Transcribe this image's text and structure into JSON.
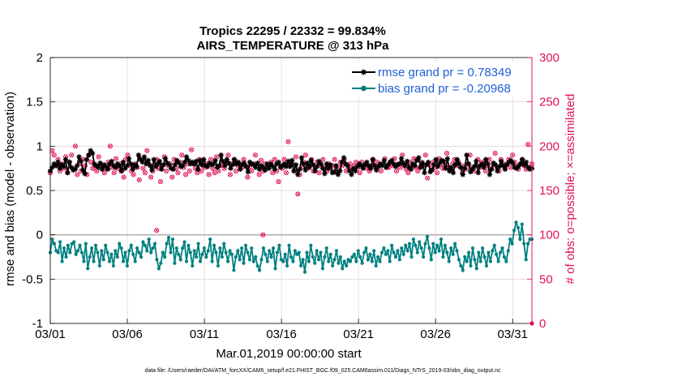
{
  "chart_data": {
    "type": "line",
    "title": "Tropics 22295 / 22332 = 99.834%",
    "subtitle": "AIRS_TEMPERATURE @ 313 hPa",
    "xlabel": "Mar.01,2019 00:00:00 start",
    "ylabel_left": "rmse and bias (model - observation)",
    "ylabel_right": "# of obs: o=possible; ×=assimilated",
    "footnote": "data file: /Users/raeder/DAI/ATM_forcXX/CAM6_setup/f.e21.FHIST_BGC.f09_025.CAM6assim.011/Diags_NTrS_2019-03/obs_diag_output.nc",
    "x_tick_labels": [
      "03/01",
      "03/06",
      "03/11",
      "03/16",
      "03/21",
      "03/26",
      "03/31"
    ],
    "x_tick_days": [
      1,
      6,
      11,
      16,
      21,
      26,
      31
    ],
    "xlim": [
      1,
      32.25
    ],
    "ylim_left": [
      -1,
      2
    ],
    "y_left_ticks": [
      -1,
      -0.5,
      0,
      0.5,
      1,
      1.5,
      2
    ],
    "y_left_tick_labels": [
      "-1",
      "-0.5",
      "0",
      "0.5",
      "1",
      "1.5",
      "2"
    ],
    "ylim_right": [
      0,
      300
    ],
    "y_right_ticks": [
      0,
      50,
      100,
      150,
      200,
      250,
      300
    ],
    "y_right_tick_labels": [
      "0",
      "50",
      "100",
      "150",
      "200",
      "250",
      "300"
    ],
    "grid": true,
    "legend_position": "top-right",
    "colors": {
      "rmse": "#000000",
      "bias": "#008080",
      "obs": "#e0105a",
      "zero_line": "#b0b0b0",
      "grid": "#dcc6d2"
    },
    "series": [
      {
        "name": "rmse grand pr = 0.78349",
        "axis": "left",
        "marker": "star",
        "values": [
          0.72,
          0.76,
          0.8,
          0.78,
          0.82,
          0.75,
          0.79,
          0.77,
          0.85,
          0.7,
          0.82,
          0.76,
          0.73,
          0.74,
          0.78,
          0.88,
          0.83,
          0.73,
          0.69,
          0.85,
          0.9,
          0.95,
          0.92,
          0.8,
          0.78,
          0.76,
          0.81,
          0.74,
          0.79,
          0.77,
          0.74,
          0.8,
          0.83,
          0.78,
          0.76,
          0.8,
          0.78,
          0.72,
          0.82,
          0.75,
          0.78,
          0.86,
          0.8,
          0.74,
          0.79,
          0.77,
          0.9,
          0.85,
          0.82,
          0.88,
          0.8,
          0.84,
          0.78,
          0.73,
          0.85,
          0.77,
          0.8,
          0.83,
          0.74,
          0.79,
          0.86,
          0.81,
          0.79,
          0.75,
          0.74,
          0.79,
          0.84,
          0.81,
          0.77,
          0.78,
          0.82,
          0.88,
          0.84,
          0.8,
          0.82,
          0.8,
          0.83,
          0.74,
          0.84,
          0.79,
          0.85,
          0.78,
          0.77,
          0.81,
          0.79,
          0.8,
          0.84,
          0.76,
          0.78,
          0.9,
          0.83,
          0.78,
          0.85,
          0.81,
          0.75,
          0.79,
          0.85,
          0.8,
          0.82,
          0.74,
          0.79,
          0.81,
          0.77,
          0.71,
          0.82,
          0.8,
          0.79,
          0.76,
          0.81,
          0.74,
          0.78,
          0.76,
          0.73,
          0.8,
          0.75,
          0.8,
          0.77,
          0.74,
          0.8,
          0.82,
          0.76,
          0.78,
          0.8,
          0.77,
          0.83,
          0.77,
          0.84,
          0.72,
          0.79,
          0.68,
          0.74,
          0.87,
          0.8,
          0.73,
          0.81,
          0.76,
          0.84,
          0.79,
          0.72,
          0.77,
          0.83,
          0.8,
          0.75,
          0.69,
          0.8,
          0.75,
          0.79,
          0.7,
          0.71,
          0.78,
          0.68,
          0.72,
          0.82,
          0.87,
          0.8,
          0.78,
          0.72,
          0.68,
          0.75,
          0.72,
          0.77,
          0.8,
          0.78,
          0.75,
          0.79,
          0.82,
          0.78,
          0.75,
          0.85,
          0.78,
          0.73,
          0.77,
          0.8,
          0.78,
          0.84,
          0.76,
          0.79,
          0.82,
          0.84,
          0.8,
          0.77,
          0.79,
          0.8,
          0.86,
          0.81,
          0.78,
          0.83,
          0.76,
          0.74,
          0.8,
          0.78,
          0.84,
          0.87,
          0.76,
          0.81,
          0.7,
          0.79,
          0.82,
          0.71,
          0.73,
          0.79,
          0.85,
          0.77,
          0.81,
          0.84,
          0.83,
          0.75,
          0.86,
          0.72,
          0.76,
          0.7,
          0.79,
          0.85,
          0.8,
          0.76,
          0.68,
          0.75,
          0.9,
          0.8,
          0.71,
          0.74,
          0.77,
          0.83,
          0.7,
          0.78,
          0.8,
          0.76,
          0.85,
          0.8,
          0.68,
          0.74,
          0.81,
          0.79,
          0.72,
          0.77,
          0.83,
          0.78,
          0.74,
          0.79,
          0.82,
          0.84,
          0.81,
          0.76,
          0.75,
          0.77,
          0.8,
          0.85,
          0.79,
          0.82,
          0.76,
          0.74,
          0.75
        ]
      },
      {
        "name": "bias grand pr = -0.20968",
        "axis": "left",
        "marker": "dot",
        "values": [
          -0.2,
          -0.05,
          -0.1,
          -0.18,
          -0.2,
          -0.08,
          -0.3,
          -0.15,
          -0.25,
          -0.12,
          -0.2,
          -0.1,
          -0.08,
          -0.22,
          -0.18,
          -0.12,
          -0.2,
          -0.3,
          -0.1,
          -0.38,
          -0.25,
          -0.15,
          -0.3,
          -0.12,
          -0.2,
          -0.35,
          -0.18,
          -0.28,
          -0.12,
          -0.2,
          -0.3,
          -0.22,
          -0.35,
          -0.18,
          -0.25,
          -0.1,
          -0.15,
          -0.3,
          -0.2,
          -0.35,
          -0.18,
          -0.12,
          -0.22,
          -0.3,
          -0.15,
          -0.2,
          -0.25,
          -0.08,
          -0.12,
          -0.18,
          -0.05,
          -0.2,
          -0.15,
          -0.1,
          -0.28,
          -0.38,
          -0.32,
          -0.2,
          -0.25,
          -0.1,
          -0.03,
          -0.2,
          -0.05,
          -0.32,
          -0.15,
          -0.22,
          -0.28,
          -0.15,
          -0.08,
          -0.3,
          -0.12,
          -0.2,
          -0.35,
          -0.18,
          -0.25,
          -0.1,
          -0.3,
          -0.22,
          -0.15,
          -0.25,
          -0.18,
          -0.05,
          -0.3,
          -0.12,
          -0.2,
          -0.35,
          -0.15,
          -0.25,
          -0.1,
          -0.2,
          -0.3,
          -0.18,
          -0.22,
          -0.4,
          -0.25,
          -0.18,
          -0.28,
          -0.15,
          -0.32,
          -0.12,
          -0.2,
          -0.28,
          -0.15,
          -0.3,
          -0.25,
          -0.35,
          -0.4,
          -0.28,
          -0.15,
          -0.22,
          -0.3,
          -0.18,
          -0.25,
          -0.15,
          -0.38,
          -0.2,
          -0.12,
          -0.28,
          -0.3,
          -0.22,
          -0.35,
          -0.12,
          -0.25,
          -0.3,
          -0.18,
          -0.22,
          -0.2,
          -0.35,
          -0.28,
          -0.42,
          -0.2,
          -0.3,
          -0.12,
          -0.25,
          -0.32,
          -0.18,
          -0.28,
          -0.2,
          -0.38,
          -0.25,
          -0.15,
          -0.3,
          -0.22,
          -0.35,
          -0.28,
          -0.18,
          -0.32,
          -0.25,
          -0.38,
          -0.3,
          -0.35,
          -0.28,
          -0.3,
          -0.25,
          -0.22,
          -0.3,
          -0.18,
          -0.25,
          -0.32,
          -0.2,
          -0.15,
          -0.28,
          -0.22,
          -0.3,
          -0.18,
          -0.35,
          -0.25,
          -0.3,
          -0.2,
          -0.15,
          -0.22,
          -0.18,
          -0.3,
          -0.12,
          -0.2,
          -0.25,
          -0.18,
          -0.28,
          -0.15,
          -0.22,
          -0.12,
          -0.18,
          -0.1,
          -0.25,
          -0.05,
          -0.12,
          -0.2,
          -0.08,
          -0.15,
          -0.25,
          -0.1,
          -0.02,
          -0.15,
          -0.28,
          -0.1,
          -0.2,
          -0.12,
          -0.18,
          -0.05,
          -0.25,
          -0.12,
          -0.2,
          -0.3,
          -0.15,
          -0.22,
          -0.1,
          -0.18,
          -0.28,
          -0.35,
          -0.4,
          -0.25,
          -0.3,
          -0.2,
          -0.35,
          -0.15,
          -0.28,
          -0.38,
          -0.2,
          -0.3,
          -0.15,
          -0.25,
          -0.35,
          -0.2,
          -0.3,
          -0.18,
          -0.12,
          -0.22,
          -0.3,
          -0.2,
          -0.15,
          -0.25,
          -0.3,
          -0.18,
          -0.05,
          -0.1,
          0.05,
          0.14,
          0.08,
          -0.05,
          0.12,
          -0.1,
          -0.28,
          -0.1,
          -0.05,
          -0.05
        ]
      },
      {
        "name": "# of obs possible",
        "axis": "right",
        "marker": "circle",
        "values": [
          170,
          195,
          190,
          178,
          185,
          172,
          180,
          175,
          188,
          170,
          182,
          190,
          175,
          200,
          168,
          180,
          172,
          185,
          178,
          168,
          190,
          182,
          175,
          178,
          172,
          188,
          180,
          178,
          170,
          175,
          182,
          200,
          176,
          170,
          186,
          175,
          180,
          172,
          165,
          185,
          190,
          178,
          172,
          168,
          180,
          176,
          162,
          186,
          175,
          170,
          195,
          180,
          165,
          172,
          178,
          185,
          175,
          160,
          178,
          188,
          172,
          178,
          180,
          165,
          185,
          175,
          170,
          182,
          190,
          176,
          168,
          180,
          172,
          196,
          180,
          175,
          170,
          185,
          172,
          178,
          176,
          180,
          168,
          185,
          175,
          170,
          188,
          172,
          178,
          182,
          175,
          180,
          190,
          168,
          180,
          185,
          172,
          178,
          180,
          176,
          185,
          178,
          165,
          176,
          172,
          180,
          190,
          178,
          168,
          184,
          172,
          180,
          175,
          178,
          182,
          170,
          185,
          172,
          160,
          178,
          175,
          185,
          170,
          205,
          178,
          180,
          172,
          188,
          146,
          168,
          176,
          182,
          190,
          175,
          178,
          185,
          172,
          176,
          182,
          170,
          178,
          185,
          176,
          172,
          180,
          175,
          178,
          185,
          170,
          176,
          182,
          178,
          185,
          172,
          176,
          180,
          174,
          178,
          182,
          176,
          170,
          182,
          176,
          180,
          175,
          172,
          178,
          185,
          176,
          182,
          178,
          172,
          180,
          186,
          176,
          176,
          182,
          178,
          186,
          172,
          180,
          176,
          190,
          178,
          174,
          170,
          182,
          178,
          186,
          176,
          172,
          176,
          182,
          178,
          190,
          164,
          180,
          175,
          182,
          176,
          170,
          186,
          180,
          175,
          178,
          192,
          176,
          172,
          180,
          185,
          178,
          182,
          176,
          170,
          178,
          174,
          180,
          190,
          176,
          172,
          178,
          185,
          176,
          182,
          180,
          172,
          178,
          185,
          175,
          180,
          192,
          176,
          172,
          185,
          180,
          176,
          180,
          185,
          176,
          190,
          182,
          178,
          174,
          180,
          185,
          178,
          174,
          202,
          176,
          180
        ]
      }
    ],
    "outlier_points": [
      {
        "day": 7.9,
        "value": 105,
        "axis": "right"
      },
      {
        "day": 14.8,
        "value": 100,
        "axis": "right"
      }
    ]
  }
}
